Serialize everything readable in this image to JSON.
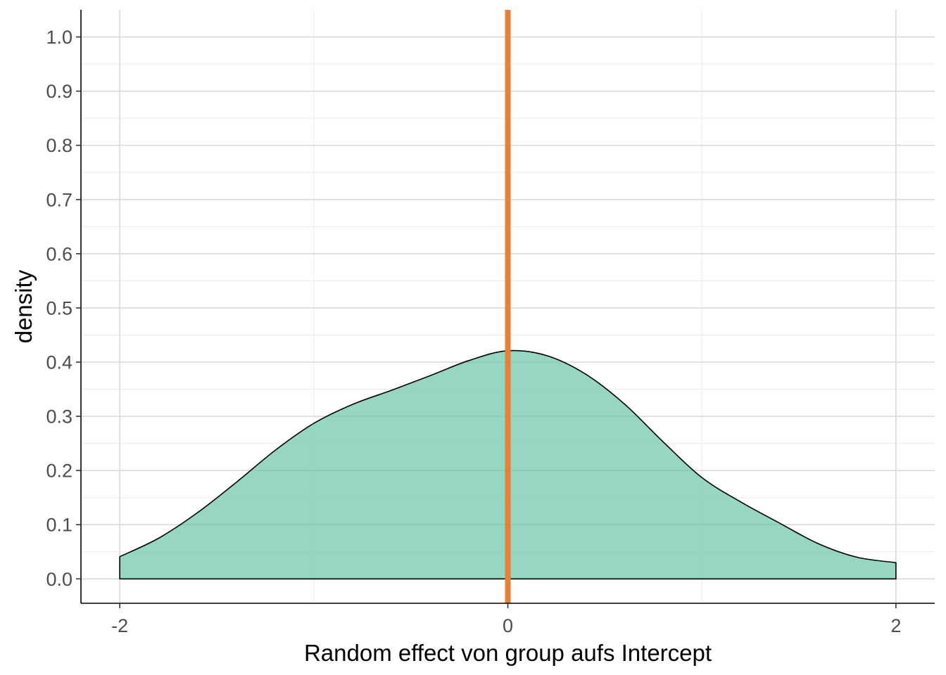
{
  "chart_data": {
    "type": "area",
    "title": "",
    "xlabel": "Random effect von group aufs Intercept",
    "ylabel": "density",
    "xlim": [
      -2.2,
      2.2
    ],
    "ylim": [
      -0.045,
      1.05
    ],
    "x_ticks": [
      -2,
      0,
      2
    ],
    "x_tick_labels": [
      "-2",
      "0",
      "2"
    ],
    "y_ticks": [
      0.0,
      0.1,
      0.2,
      0.3,
      0.4,
      0.5,
      0.6,
      0.7,
      0.8,
      0.9,
      1.0
    ],
    "y_tick_labels": [
      "0.0",
      "0.1",
      "0.2",
      "0.3",
      "0.4",
      "0.5",
      "0.6",
      "0.7",
      "0.8",
      "0.9",
      "1.0"
    ],
    "grid": true,
    "legend": "none",
    "series": [
      {
        "x": [
          -2.0,
          -1.8,
          -1.6,
          -1.4,
          -1.2,
          -1.0,
          -0.8,
          -0.6,
          -0.4,
          -0.2,
          0.0,
          0.2,
          0.4,
          0.6,
          0.8,
          1.0,
          1.2,
          1.4,
          1.6,
          1.8,
          2.0
        ],
        "y": [
          0.041,
          0.075,
          0.122,
          0.178,
          0.237,
          0.287,
          0.322,
          0.348,
          0.375,
          0.403,
          0.421,
          0.412,
          0.378,
          0.323,
          0.253,
          0.187,
          0.142,
          0.103,
          0.065,
          0.04,
          0.03
        ],
        "fill": "#66c2a5",
        "fill_opacity": 0.68,
        "stroke": "#000000"
      }
    ],
    "reference_line": {
      "orientation": "vertical",
      "x": 0,
      "color": "#e6803b"
    }
  }
}
